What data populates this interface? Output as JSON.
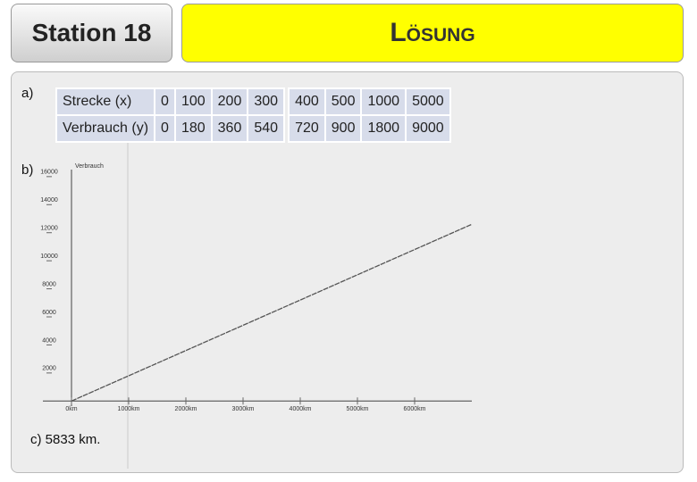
{
  "header": {
    "station": "Station 18",
    "solution": "LÖSUNG"
  },
  "labels": {
    "a": "a)",
    "b": "b)",
    "c": "c) 5833 km."
  },
  "table": {
    "rows": [
      [
        "Strecke (x)",
        "0",
        "100",
        "200",
        "300",
        "400",
        "500",
        "1000",
        "5000"
      ],
      [
        "Verbrauch (y)",
        "0",
        "180",
        "360",
        "540",
        "720",
        "900",
        "1800",
        "9000"
      ]
    ]
  },
  "chart_data": {
    "type": "line",
    "y_label": "Verbrauch",
    "x": [
      0,
      7000
    ],
    "series": [
      {
        "color": "#555555",
        "values": [
          0,
          12600
        ]
      }
    ],
    "xlim": [
      -500,
      7000
    ],
    "xticks": [
      {
        "value": 0,
        "label": "0km"
      },
      {
        "value": 1000,
        "label": "1000km"
      },
      {
        "value": 2000,
        "label": "2000km"
      },
      {
        "value": 3000,
        "label": "3000km"
      },
      {
        "value": 4000,
        "label": "4000km"
      },
      {
        "value": 5000,
        "label": "5000km"
      },
      {
        "value": 6000,
        "label": "6000km"
      }
    ],
    "ylim": [
      -1000,
      16500
    ],
    "yticks": [
      2000,
      4000,
      6000,
      8000,
      10000,
      12000,
      14000,
      16000
    ]
  }
}
